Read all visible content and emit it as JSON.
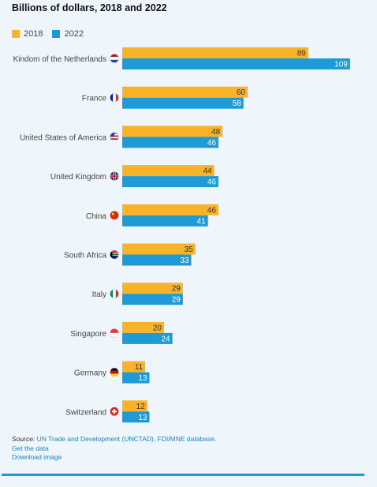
{
  "title": "Billions of dollars, 2018 and 2022",
  "colors": {
    "s2018": "#f9b329",
    "s2022": "#1e9ad6"
  },
  "chart_data": {
    "type": "bar",
    "orientation": "horizontal",
    "title": "Billions of dollars, 2018 and 2022",
    "categories": [
      "Kindom of the Netherlands",
      "France",
      "United States of America",
      "United Kingdom",
      "China",
      "South Africa",
      "Italy",
      "Singapore",
      "Germany",
      "Switzerland"
    ],
    "flag_icons": [
      "netherlands-flag-icon",
      "france-flag-icon",
      "usa-flag-icon",
      "uk-flag-icon",
      "china-flag-icon",
      "south-africa-flag-icon",
      "italy-flag-icon",
      "singapore-flag-icon",
      "germany-flag-icon",
      "switzerland-flag-icon"
    ],
    "series": [
      {
        "name": "2018",
        "values": [
          89,
          60,
          48,
          44,
          46,
          35,
          29,
          20,
          11,
          12
        ]
      },
      {
        "name": "2022",
        "values": [
          109,
          58,
          46,
          46,
          41,
          33,
          29,
          24,
          13,
          13
        ]
      }
    ],
    "legend_position": "top-left",
    "data_labels": true,
    "grid": false
  },
  "source": {
    "label": "Source:",
    "text": "UN Trade and Development (UNCTAD), FDI/MNE database.",
    "get_data": "Get the data",
    "download": "Download image"
  }
}
